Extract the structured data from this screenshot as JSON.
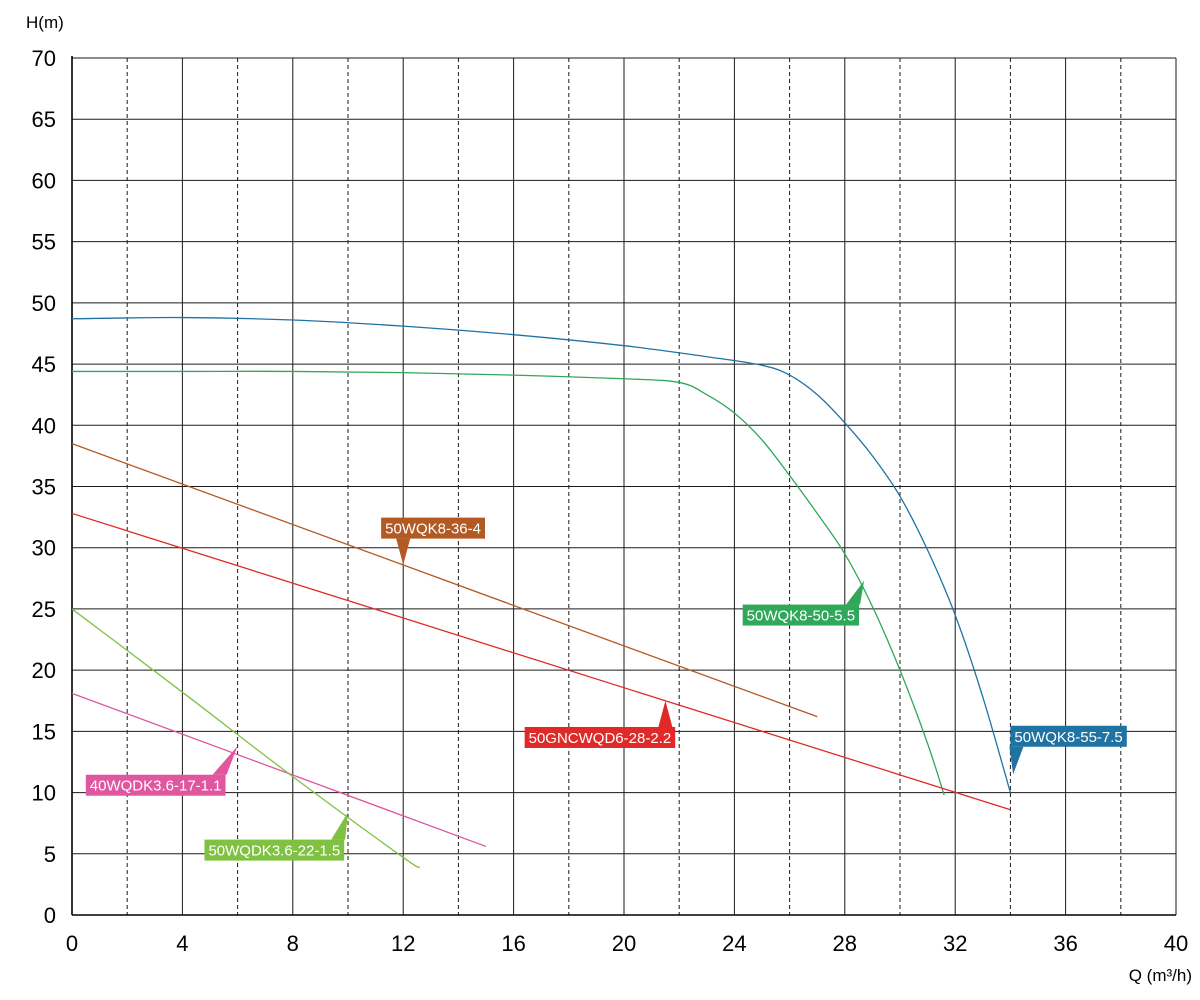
{
  "chart_data": {
    "type": "line",
    "xlabel": "Q (m³/h)",
    "ylabel": "H(m)",
    "xlim": [
      0,
      40
    ],
    "ylim": [
      0,
      70
    ],
    "x_ticks": [
      0,
      4,
      8,
      12,
      16,
      20,
      24,
      28,
      32,
      36,
      40
    ],
    "y_ticks": [
      0,
      5,
      10,
      15,
      20,
      25,
      30,
      35,
      40,
      45,
      50,
      55,
      60,
      65,
      70
    ],
    "x_minor_gridlines": [
      2,
      6,
      10,
      14,
      18,
      22,
      26,
      30,
      34,
      38
    ],
    "grid": true,
    "legend": "inline labels",
    "series": [
      {
        "name": "50WQK8-55-7.5",
        "color": "#1f73a3",
        "points": [
          [
            0,
            48.7
          ],
          [
            4,
            48.8
          ],
          [
            8,
            48.6
          ],
          [
            12,
            48.1
          ],
          [
            16,
            47.4
          ],
          [
            20,
            46.5
          ],
          [
            23,
            45.6
          ],
          [
            25,
            44.9
          ],
          [
            26,
            44.1
          ],
          [
            27,
            42.5
          ],
          [
            28,
            40.2
          ],
          [
            29,
            37.5
          ],
          [
            30,
            34.2
          ],
          [
            31,
            29.8
          ],
          [
            32,
            24.5
          ],
          [
            33,
            17.8
          ],
          [
            34,
            10.0
          ]
        ]
      },
      {
        "name": "50WQK8-50-5.5",
        "color": "#2fa85a",
        "points": [
          [
            0,
            44.4
          ],
          [
            4,
            44.4
          ],
          [
            8,
            44.4
          ],
          [
            12,
            44.3
          ],
          [
            16,
            44.1
          ],
          [
            20,
            43.8
          ],
          [
            22,
            43.5
          ],
          [
            23,
            42.5
          ],
          [
            24,
            41.0
          ],
          [
            25,
            38.8
          ],
          [
            26,
            35.9
          ],
          [
            27,
            32.8
          ],
          [
            28,
            29.5
          ],
          [
            29,
            25.2
          ],
          [
            30,
            20.0
          ],
          [
            31,
            14.0
          ],
          [
            31.6,
            9.8
          ]
        ]
      },
      {
        "name": "50WQK8-36-4",
        "color": "#b35a24",
        "points": [
          [
            0,
            38.5
          ],
          [
            27,
            16.2
          ]
        ]
      },
      {
        "name": "50GNCWQD6-28-2.2",
        "color": "#e02a2a",
        "points": [
          [
            0,
            32.8
          ],
          [
            34,
            8.6
          ]
        ]
      },
      {
        "name": "40WQDK3.6-17-1.1",
        "color": "#e0569f",
        "points": [
          [
            0,
            18.1
          ],
          [
            15,
            5.6
          ]
        ]
      },
      {
        "name": "50WQDK3.6-22-1.5",
        "color": "#7fc241",
        "points": [
          [
            0,
            25.0
          ],
          [
            4,
            18.2
          ],
          [
            8,
            11.3
          ],
          [
            12,
            4.7
          ],
          [
            12.6,
            3.9
          ]
        ]
      }
    ],
    "annotations": [
      {
        "text": "50WQK8-55-7.5",
        "series": "50WQK8-55-7.5",
        "color": "#1f73a3",
        "label_x": 34.0,
        "label_y": 14.6,
        "tip_x": 34.1,
        "tip_y": 11.5
      },
      {
        "text": "50WQK8-50-5.5",
        "series": "50WQK8-50-5.5",
        "color": "#2fa85a",
        "label_x": 24.3,
        "label_y": 24.5,
        "tip_x": 28.7,
        "tip_y": 27.3
      },
      {
        "text": "50WQK8-36-4",
        "series": "50WQK8-36-4",
        "color": "#b35a24",
        "label_x": 11.2,
        "label_y": 31.6,
        "tip_x": 12.0,
        "tip_y": 28.6
      },
      {
        "text": "50GNCWQD6-28-2.2",
        "series": "50GNCWQD6-28-2.2",
        "color": "#e02a2a",
        "label_x": 16.4,
        "label_y": 14.5,
        "tip_x": 21.5,
        "tip_y": 17.5
      },
      {
        "text": "40WQDK3.6-17-1.1",
        "series": "40WQDK3.6-17-1.1",
        "color": "#e0569f",
        "label_x": 0.5,
        "label_y": 10.6,
        "tip_x": 6.0,
        "tip_y": 13.8
      },
      {
        "text": "50WQDK3.6-22-1.5",
        "series": "50WQDK3.6-22-1.5",
        "color": "#7fc241",
        "label_x": 4.8,
        "label_y": 5.3,
        "tip_x": 10.0,
        "tip_y": 8.4
      }
    ]
  }
}
